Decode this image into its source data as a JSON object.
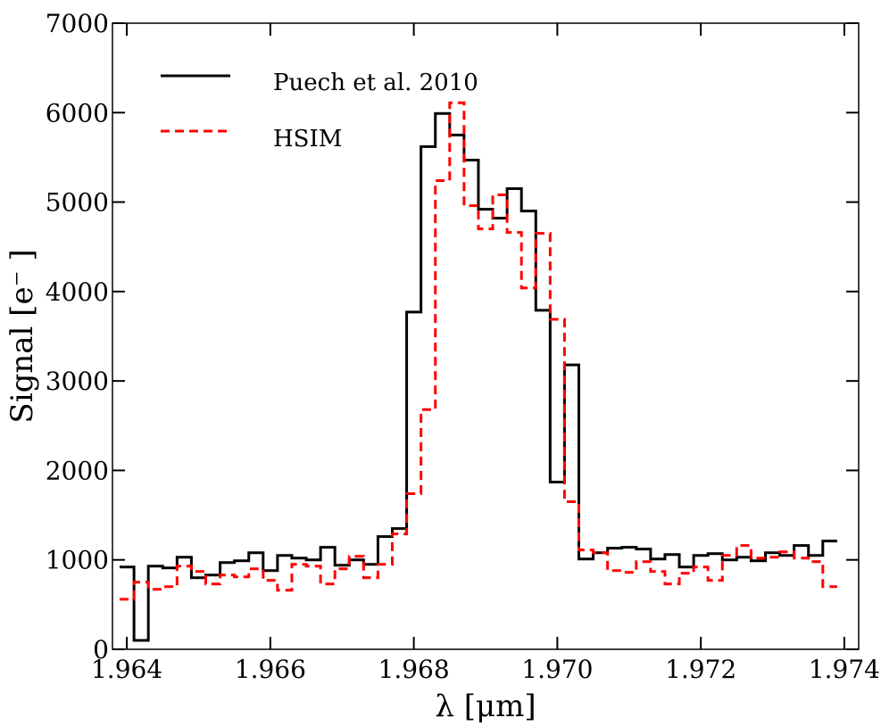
{
  "chart_data": {
    "type": "line",
    "step": true,
    "xlabel": "λ [μm]",
    "ylabel": "Signal [e⁻ ]",
    "xlim": [
      1.9638,
      1.9742
    ],
    "ylim": [
      0,
      7000
    ],
    "xticks": [
      1.964,
      1.966,
      1.968,
      1.97,
      1.972,
      1.974
    ],
    "xtick_labels": [
      "1.964",
      "1.966",
      "1.968",
      "1.970",
      "1.972",
      "1.974"
    ],
    "yticks": [
      0,
      1000,
      2000,
      3000,
      4000,
      5000,
      6000,
      7000
    ],
    "ytick_labels": [
      "0",
      "1000",
      "2000",
      "3000",
      "4000",
      "5000",
      "6000",
      "7000"
    ],
    "legend_position": "top-left",
    "series": [
      {
        "name": "Puech et al. 2010",
        "color": "#000000",
        "dash": "solid",
        "x0": 1.9639,
        "dx": 0.0002,
        "values": [
          920,
          100,
          930,
          910,
          1030,
          800,
          830,
          970,
          990,
          1080,
          880,
          1050,
          1020,
          1000,
          1140,
          940,
          1000,
          950,
          1260,
          1350,
          3770,
          5620,
          5990,
          5750,
          5470,
          4920,
          4820,
          5150,
          4900,
          3790,
          1870,
          3180,
          1010,
          1080,
          1130,
          1140,
          1120,
          1010,
          1060,
          920,
          1050,
          1070,
          1000,
          1030,
          990,
          1080,
          1050,
          1160,
          1050,
          1210
        ]
      },
      {
        "name": "HSIM",
        "color": "#ff0000",
        "dash": "dashed",
        "x0": 1.9639,
        "dx": 0.0002,
        "values": [
          560,
          750,
          670,
          700,
          930,
          870,
          730,
          830,
          810,
          900,
          770,
          660,
          950,
          930,
          730,
          900,
          1040,
          800,
          950,
          1290,
          1740,
          2680,
          5240,
          6110,
          4960,
          4700,
          5080,
          4660,
          4040,
          4650,
          3690,
          1650,
          1110,
          1080,
          880,
          860,
          980,
          870,
          730,
          850,
          920,
          770,
          1050,
          1160,
          1020,
          1030,
          1090,
          1020,
          980,
          700
        ]
      }
    ]
  }
}
